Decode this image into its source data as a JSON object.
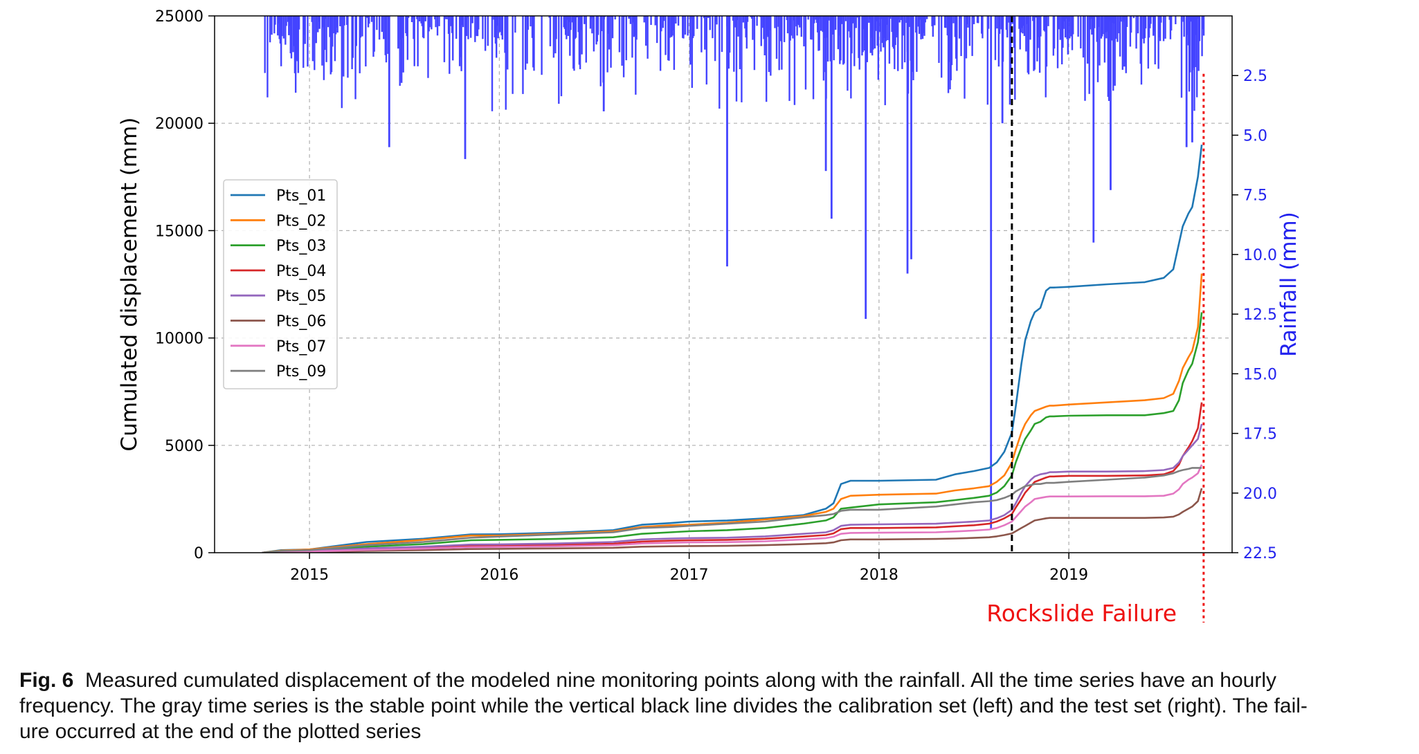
{
  "chart_data": {
    "type": "line",
    "title": "",
    "xlabel": "",
    "ylabel": "Cumulated displacement (mm)",
    "y2label": "Rainfall (mm)",
    "xlim": [
      2014.5,
      2019.86
    ],
    "ylim": [
      0,
      25000
    ],
    "y2lim": [
      0,
      22.5
    ],
    "y2_inverted": true,
    "grid": true,
    "legend_position": "center-left",
    "x_ticks": [
      2015,
      2016,
      2017,
      2018,
      2019
    ],
    "x_tick_labels": [
      "2015",
      "2016",
      "2017",
      "2018",
      "2019"
    ],
    "y_ticks": [
      0,
      5000,
      10000,
      15000,
      20000,
      25000
    ],
    "y_tick_labels": [
      "0",
      "5000",
      "10000",
      "15000",
      "20000",
      "25000"
    ],
    "y2_ticks": [
      2.5,
      5.0,
      7.5,
      10.0,
      12.5,
      15.0,
      17.5,
      20.0,
      22.5
    ],
    "y2_tick_labels": [
      "2.5",
      "5.0",
      "7.5",
      "10.0",
      "12.5",
      "15.0",
      "17.5",
      "20.0",
      "22.5"
    ],
    "series": [
      {
        "name": "Pts_01",
        "color": "#1f77b4",
        "x": [
          2014.75,
          2014.85,
          2015.0,
          2015.3,
          2015.6,
          2015.85,
          2016.0,
          2016.3,
          2016.6,
          2016.75,
          2016.9,
          2017.0,
          2017.2,
          2017.4,
          2017.6,
          2017.72,
          2017.76,
          2017.8,
          2017.85,
          2018.0,
          2018.3,
          2018.4,
          2018.5,
          2018.58,
          2018.62,
          2018.66,
          2018.7,
          2018.72,
          2018.75,
          2018.77,
          2018.8,
          2018.82,
          2018.85,
          2018.88,
          2018.9,
          2018.92,
          2019.0,
          2019.2,
          2019.4,
          2019.5,
          2019.55,
          2019.58,
          2019.6,
          2019.63,
          2019.65,
          2019.68,
          2019.7
        ],
        "y": [
          0,
          120,
          150,
          500,
          650,
          850,
          860,
          930,
          1050,
          1300,
          1380,
          1450,
          1500,
          1600,
          1750,
          2050,
          2300,
          3200,
          3350,
          3350,
          3400,
          3650,
          3800,
          3950,
          4200,
          4700,
          5600,
          6800,
          8800,
          9900,
          10800,
          11200,
          11400,
          12200,
          12350,
          12350,
          12380,
          12500,
          12600,
          12800,
          13200,
          14400,
          15200,
          15800,
          16100,
          17500,
          19000
        ]
      },
      {
        "name": "Pts_02",
        "color": "#ff7f0e",
        "x": [
          2014.75,
          2014.85,
          2015.0,
          2015.3,
          2015.6,
          2015.85,
          2016.0,
          2016.3,
          2016.6,
          2016.75,
          2016.9,
          2017.0,
          2017.2,
          2017.4,
          2017.6,
          2017.72,
          2017.76,
          2017.8,
          2017.85,
          2018.0,
          2018.3,
          2018.4,
          2018.5,
          2018.58,
          2018.62,
          2018.66,
          2018.7,
          2018.72,
          2018.75,
          2018.77,
          2018.8,
          2018.82,
          2018.85,
          2018.88,
          2018.9,
          2018.92,
          2019.0,
          2019.2,
          2019.4,
          2019.5,
          2019.55,
          2019.58,
          2019.6,
          2019.63,
          2019.65,
          2019.68,
          2019.7
        ],
        "y": [
          0,
          100,
          150,
          400,
          600,
          800,
          800,
          880,
          1000,
          1200,
          1280,
          1300,
          1400,
          1550,
          1700,
          1900,
          2050,
          2500,
          2650,
          2700,
          2750,
          2900,
          3000,
          3100,
          3300,
          3600,
          4200,
          4800,
          5600,
          6000,
          6400,
          6600,
          6700,
          6800,
          6850,
          6850,
          6900,
          7000,
          7100,
          7200,
          7400,
          8000,
          8600,
          9100,
          9400,
          10500,
          13000
        ]
      },
      {
        "name": "Pts_03",
        "color": "#2ca02c",
        "x": [
          2014.75,
          2014.85,
          2015.0,
          2015.3,
          2015.6,
          2015.85,
          2016.0,
          2016.3,
          2016.6,
          2016.75,
          2016.9,
          2017.0,
          2017.2,
          2017.4,
          2017.6,
          2017.72,
          2017.76,
          2017.8,
          2017.85,
          2018.0,
          2018.3,
          2018.4,
          2018.5,
          2018.58,
          2018.62,
          2018.66,
          2018.7,
          2018.72,
          2018.75,
          2018.77,
          2018.8,
          2018.82,
          2018.85,
          2018.88,
          2018.9,
          2018.92,
          2019.0,
          2019.2,
          2019.4,
          2019.5,
          2019.55,
          2019.58,
          2019.6,
          2019.63,
          2019.65,
          2019.68,
          2019.7
        ],
        "y": [
          0,
          80,
          100,
          280,
          400,
          580,
          600,
          640,
          720,
          880,
          950,
          1000,
          1050,
          1150,
          1350,
          1500,
          1650,
          2050,
          2100,
          2250,
          2350,
          2450,
          2550,
          2650,
          2800,
          3100,
          3600,
          4200,
          4900,
          5300,
          5700,
          6000,
          6100,
          6300,
          6350,
          6350,
          6380,
          6400,
          6400,
          6500,
          6600,
          7100,
          7900,
          8500,
          8800,
          9800,
          11200
        ]
      },
      {
        "name": "Pts_04",
        "color": "#d62728",
        "x": [
          2014.75,
          2014.85,
          2015.0,
          2015.3,
          2015.6,
          2015.85,
          2016.0,
          2016.3,
          2016.6,
          2016.75,
          2016.9,
          2017.0,
          2017.2,
          2017.4,
          2017.6,
          2017.72,
          2017.76,
          2017.8,
          2017.85,
          2018.0,
          2018.3,
          2018.4,
          2018.5,
          2018.58,
          2018.62,
          2018.66,
          2018.7,
          2018.72,
          2018.75,
          2018.77,
          2018.8,
          2018.82,
          2018.85,
          2018.88,
          2018.9,
          2018.92,
          2019.0,
          2019.2,
          2019.4,
          2019.5,
          2019.55,
          2019.58,
          2019.6,
          2019.63,
          2019.65,
          2019.68,
          2019.7
        ],
        "y": [
          0,
          40,
          60,
          160,
          230,
          320,
          330,
          360,
          420,
          520,
          560,
          580,
          600,
          650,
          750,
          820,
          900,
          1100,
          1150,
          1150,
          1180,
          1230,
          1280,
          1350,
          1450,
          1600,
          1800,
          2100,
          2500,
          2800,
          3100,
          3300,
          3400,
          3500,
          3550,
          3550,
          3580,
          3580,
          3600,
          3650,
          3800,
          4100,
          4500,
          4900,
          5200,
          5800,
          7000
        ]
      },
      {
        "name": "Pts_05",
        "color": "#9467bd",
        "x": [
          2014.75,
          2014.85,
          2015.0,
          2015.3,
          2015.6,
          2015.85,
          2016.0,
          2016.3,
          2016.6,
          2016.75,
          2016.9,
          2017.0,
          2017.2,
          2017.4,
          2017.6,
          2017.72,
          2017.76,
          2017.8,
          2017.85,
          2018.0,
          2018.3,
          2018.4,
          2018.5,
          2018.58,
          2018.62,
          2018.66,
          2018.7,
          2018.72,
          2018.75,
          2018.77,
          2018.8,
          2018.82,
          2018.85,
          2018.88,
          2018.9,
          2018.92,
          2019.0,
          2019.2,
          2019.4,
          2019.5,
          2019.55,
          2019.58,
          2019.6,
          2019.63,
          2019.65,
          2019.68,
          2019.7
        ],
        "y": [
          0,
          50,
          70,
          200,
          280,
          380,
          390,
          430,
          500,
          620,
          660,
          680,
          700,
          760,
          880,
          950,
          1050,
          1250,
          1300,
          1320,
          1350,
          1400,
          1450,
          1500,
          1600,
          1750,
          2000,
          2300,
          2800,
          3100,
          3400,
          3550,
          3650,
          3700,
          3750,
          3750,
          3780,
          3780,
          3800,
          3850,
          3950,
          4200,
          4500,
          4800,
          5000,
          5300,
          6000
        ]
      },
      {
        "name": "Pts_06",
        "color": "#8c564b",
        "x": [
          2014.75,
          2014.85,
          2015.0,
          2015.3,
          2015.6,
          2015.85,
          2016.0,
          2016.3,
          2016.6,
          2016.75,
          2016.9,
          2017.0,
          2017.2,
          2017.4,
          2017.6,
          2017.72,
          2017.76,
          2017.8,
          2017.85,
          2018.0,
          2018.3,
          2018.4,
          2018.5,
          2018.58,
          2018.62,
          2018.66,
          2018.7,
          2018.72,
          2018.75,
          2018.77,
          2018.8,
          2018.82,
          2018.85,
          2018.88,
          2018.9,
          2018.92,
          2019.0,
          2019.2,
          2019.4,
          2019.5,
          2019.55,
          2019.58,
          2019.6,
          2019.63,
          2019.65,
          2019.68,
          2019.7
        ],
        "y": [
          0,
          20,
          30,
          80,
          120,
          170,
          180,
          200,
          230,
          280,
          300,
          310,
          320,
          350,
          400,
          440,
          480,
          580,
          620,
          620,
          640,
          660,
          690,
          720,
          760,
          820,
          900,
          1000,
          1150,
          1250,
          1400,
          1500,
          1550,
          1600,
          1620,
          1620,
          1620,
          1620,
          1620,
          1640,
          1680,
          1780,
          1900,
          2050,
          2150,
          2400,
          3000
        ]
      },
      {
        "name": "Pts_07",
        "color": "#e377c2",
        "x": [
          2014.75,
          2014.85,
          2015.0,
          2015.3,
          2015.6,
          2015.85,
          2016.0,
          2016.3,
          2016.6,
          2016.75,
          2016.9,
          2017.0,
          2017.2,
          2017.4,
          2017.6,
          2017.72,
          2017.76,
          2017.8,
          2017.85,
          2018.0,
          2018.3,
          2018.4,
          2018.5,
          2018.58,
          2018.62,
          2018.66,
          2018.7,
          2018.72,
          2018.75,
          2018.77,
          2018.8,
          2018.82,
          2018.85,
          2018.88,
          2018.9,
          2018.92,
          2019.0,
          2019.2,
          2019.4,
          2019.5,
          2019.55,
          2019.58,
          2019.6,
          2019.63,
          2019.65,
          2019.68,
          2019.7
        ],
        "y": [
          0,
          30,
          50,
          130,
          190,
          260,
          270,
          300,
          350,
          430,
          460,
          480,
          490,
          530,
          620,
          680,
          740,
          880,
          920,
          930,
          950,
          990,
          1030,
          1080,
          1150,
          1280,
          1450,
          1650,
          1950,
          2150,
          2350,
          2500,
          2550,
          2600,
          2620,
          2620,
          2620,
          2630,
          2630,
          2650,
          2750,
          2950,
          3200,
          3400,
          3500,
          3700,
          4100
        ]
      },
      {
        "name": "Pts_09",
        "color": "#7f7f7f",
        "x": [
          2014.75,
          2014.85,
          2015.0,
          2015.3,
          2015.6,
          2015.85,
          2016.0,
          2016.3,
          2016.6,
          2016.75,
          2016.9,
          2017.0,
          2017.2,
          2017.4,
          2017.6,
          2017.72,
          2017.76,
          2017.8,
          2017.85,
          2018.0,
          2018.3,
          2018.4,
          2018.5,
          2018.58,
          2018.62,
          2018.66,
          2018.7,
          2018.72,
          2018.75,
          2018.77,
          2018.8,
          2018.82,
          2018.85,
          2018.88,
          2018.9,
          2018.92,
          2019.0,
          2019.2,
          2019.4,
          2019.5,
          2019.55,
          2019.58,
          2019.6,
          2019.63,
          2019.65,
          2019.68,
          2019.7
        ],
        "y": [
          0,
          80,
          120,
          350,
          500,
          700,
          750,
          850,
          950,
          1150,
          1200,
          1250,
          1350,
          1450,
          1650,
          1750,
          1800,
          1950,
          2000,
          2000,
          2150,
          2250,
          2350,
          2400,
          2450,
          2550,
          2700,
          2850,
          3000,
          3100,
          3150,
          3200,
          3200,
          3250,
          3250,
          3250,
          3300,
          3400,
          3500,
          3600,
          3700,
          3800,
          3850,
          3900,
          3950,
          3950,
          3950
        ]
      }
    ],
    "rainfall": {
      "name": "Rainfall",
      "color": "#4444ff",
      "axis": "y2",
      "spikes": [
        {
          "x": 2015.42,
          "y": 5.5
        },
        {
          "x": 2015.82,
          "y": 6.0
        },
        {
          "x": 2016.55,
          "y": 4.0
        },
        {
          "x": 2017.2,
          "y": 10.5
        },
        {
          "x": 2017.72,
          "y": 6.5
        },
        {
          "x": 2017.75,
          "y": 8.5
        },
        {
          "x": 2017.93,
          "y": 12.7
        },
        {
          "x": 2018.15,
          "y": 10.8
        },
        {
          "x": 2018.17,
          "y": 10.2
        },
        {
          "x": 2018.59,
          "y": 21.5
        },
        {
          "x": 2018.65,
          "y": 4.5
        },
        {
          "x": 2019.13,
          "y": 9.5
        },
        {
          "x": 2019.22,
          "y": 7.3
        },
        {
          "x": 2019.62,
          "y": 5.5
        },
        {
          "x": 2019.65,
          "y": 5.3
        }
      ]
    },
    "vertical_lines": [
      {
        "name": "calibration-test-divider",
        "x": 2018.7,
        "color": "#000000",
        "style": "dashed"
      },
      {
        "name": "rockslide-failure-line",
        "x": 2019.71,
        "color": "#ee1111",
        "style": "dotted"
      }
    ],
    "annotations": [
      {
        "text": "Rockslide Failure",
        "color": "#ee1111"
      }
    ]
  },
  "caption": {
    "label": "Fig. 6",
    "lines": [
      "Measured cumulated displacement of the modeled nine monitoring points along with the rainfall. All the time series have an hourly",
      "frequency. The gray time series is the stable point while the vertical black line divides the calibration set (left) and the test set (right). The fail-",
      "ure occurred at the end of the plotted series"
    ]
  }
}
